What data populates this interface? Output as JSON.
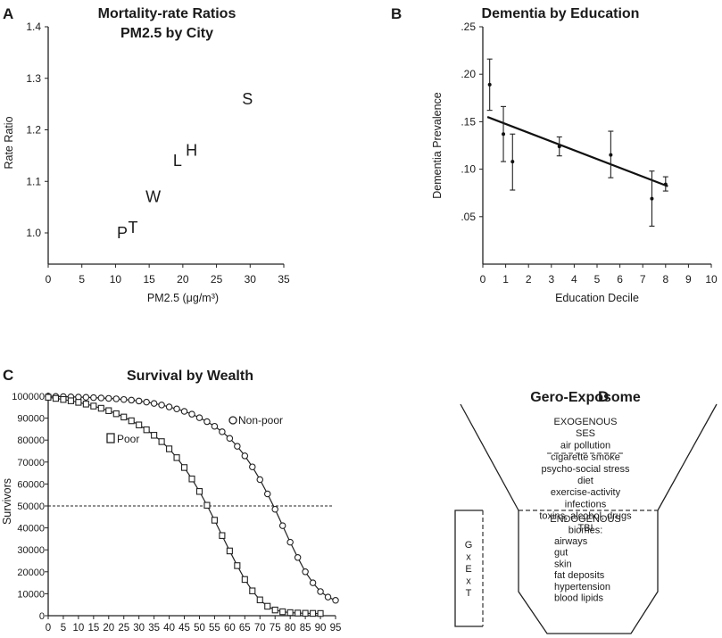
{
  "panels": {
    "a": "A",
    "b": "B",
    "c": "C",
    "d": "D"
  },
  "chart_data": [
    {
      "id": "A",
      "type": "scatter",
      "title": "Mortality-rate Ratios",
      "subtitle": "PM2.5 by City",
      "xlabel": "PM2.5 (μg/m³)",
      "ylabel": "Rate Ratio",
      "xlim": [
        0,
        35
      ],
      "ylim": [
        0.93,
        1.4
      ],
      "xticks": [
        0,
        5,
        10,
        15,
        20,
        25,
        30,
        35
      ],
      "yticks": [
        1.0,
        1.1,
        1.2,
        1.3,
        1.4
      ],
      "ytick_labels": [
        "1.0",
        "1.1",
        "1.2",
        "1.3",
        "1.4"
      ],
      "points": [
        {
          "label": "P",
          "x": 11.0,
          "y": 1.0
        },
        {
          "label": "T",
          "x": 12.6,
          "y": 1.01
        },
        {
          "label": "W",
          "x": 15.6,
          "y": 1.07
        },
        {
          "label": "L",
          "x": 19.2,
          "y": 1.14
        },
        {
          "label": "H",
          "x": 21.3,
          "y": 1.16
        },
        {
          "label": "S",
          "x": 29.6,
          "y": 1.26
        }
      ]
    },
    {
      "id": "B",
      "type": "scatter",
      "title": "Dementia by Education",
      "xlabel": "Education Decile",
      "ylabel": "Dementia Prevalence",
      "xlim": [
        0,
        10
      ],
      "ylim": [
        0,
        0.25
      ],
      "xticks": [
        0,
        1,
        2,
        3,
        4,
        5,
        6,
        7,
        8,
        9,
        10
      ],
      "yticks": [
        0.05,
        0.1,
        0.15,
        0.2,
        0.25
      ],
      "ytick_labels": [
        ".05",
        ".10",
        ".15",
        ".20",
        ".25"
      ],
      "points": [
        {
          "x": 0.3,
          "y": 0.189,
          "lo": 0.162,
          "hi": 0.216
        },
        {
          "x": 0.9,
          "y": 0.137,
          "lo": 0.108,
          "hi": 0.166
        },
        {
          "x": 1.3,
          "y": 0.108,
          "lo": 0.078,
          "hi": 0.137
        },
        {
          "x": 3.35,
          "y": 0.124,
          "lo": 0.114,
          "hi": 0.134
        },
        {
          "x": 5.6,
          "y": 0.115,
          "lo": 0.091,
          "hi": 0.14
        },
        {
          "x": 7.4,
          "y": 0.069,
          "lo": 0.04,
          "hi": 0.098
        },
        {
          "x": 8.0,
          "y": 0.084,
          "lo": 0.077,
          "hi": 0.092
        }
      ],
      "trend": [
        [
          0.2,
          0.155
        ],
        [
          8.1,
          0.082
        ]
      ]
    },
    {
      "id": "C",
      "type": "line",
      "title": "Survival by Wealth",
      "ylabel": "Survivors",
      "xlim": [
        0,
        95
      ],
      "ylim": [
        0,
        100000
      ],
      "xticks": [
        0,
        5,
        10,
        15,
        20,
        25,
        30,
        35,
        40,
        45,
        50,
        55,
        60,
        65,
        70,
        75,
        80,
        85,
        90,
        95
      ],
      "yticks": [
        0,
        10000,
        20000,
        30000,
        40000,
        50000,
        60000,
        70000,
        80000,
        90000,
        100000
      ],
      "reference_y": 50000,
      "series": [
        {
          "name": "Non-poor",
          "marker": "circle",
          "x": [
            0,
            2.5,
            5,
            7.5,
            10,
            12.5,
            15,
            17.5,
            20,
            22.5,
            25,
            27.5,
            30,
            32.5,
            35,
            37.5,
            40,
            42.5,
            45,
            47.5,
            50,
            52.5,
            55,
            57.5,
            60,
            62.5,
            65,
            67.5,
            70,
            72.5,
            75,
            77.5,
            80,
            82.5,
            85,
            87.5,
            90,
            92.5,
            95
          ],
          "y": [
            100000,
            99900,
            99800,
            99700,
            99600,
            99500,
            99350,
            99200,
            99000,
            98800,
            98500,
            98200,
            97800,
            97300,
            96700,
            96000,
            95100,
            94200,
            93100,
            91800,
            90200,
            88400,
            86300,
            83800,
            80800,
            77200,
            72800,
            67800,
            62000,
            55500,
            48500,
            41000,
            33500,
            26500,
            20000,
            15000,
            11000,
            8500,
            7000
          ]
        },
        {
          "name": "Poor",
          "marker": "square",
          "x": [
            0,
            2.5,
            5,
            7.5,
            10,
            12.5,
            15,
            17.5,
            20,
            22.5,
            25,
            27.5,
            30,
            32.5,
            35,
            37.5,
            40,
            42.5,
            45,
            47.5,
            50,
            52.5,
            55,
            57.5,
            60,
            62.5,
            65,
            67.5,
            70,
            72.5,
            75,
            77.5,
            80,
            82.5,
            85,
            87.5,
            90
          ],
          "y": [
            99500,
            99000,
            98500,
            97900,
            97200,
            96400,
            95500,
            94500,
            93400,
            92000,
            90500,
            88800,
            86900,
            84700,
            82200,
            79300,
            76000,
            72000,
            67500,
            62300,
            56600,
            50300,
            43500,
            36500,
            29500,
            22800,
            16500,
            11300,
            7200,
            4300,
            2600,
            1800,
            1400,
            1200,
            1100,
            1050,
            1000
          ]
        }
      ]
    }
  ],
  "diagram": {
    "title": "Gero-Exposome",
    "exogenous": [
      "EXOGENOUS",
      "SES",
      "air pollution",
      "cigarette smoke",
      "psycho-social stress",
      "diet",
      "exercise-activity",
      "infections",
      "toxins, alcohol, drugs",
      "TBI"
    ],
    "endogenous_header": [
      "ENDOGENOUS",
      "biomes:"
    ],
    "endogenous_items": [
      "airways",
      "gut",
      "skin",
      "fat deposits",
      "hypertension",
      "blood lipids"
    ],
    "gxe": [
      "G",
      "x",
      "E",
      "x",
      "T"
    ]
  }
}
